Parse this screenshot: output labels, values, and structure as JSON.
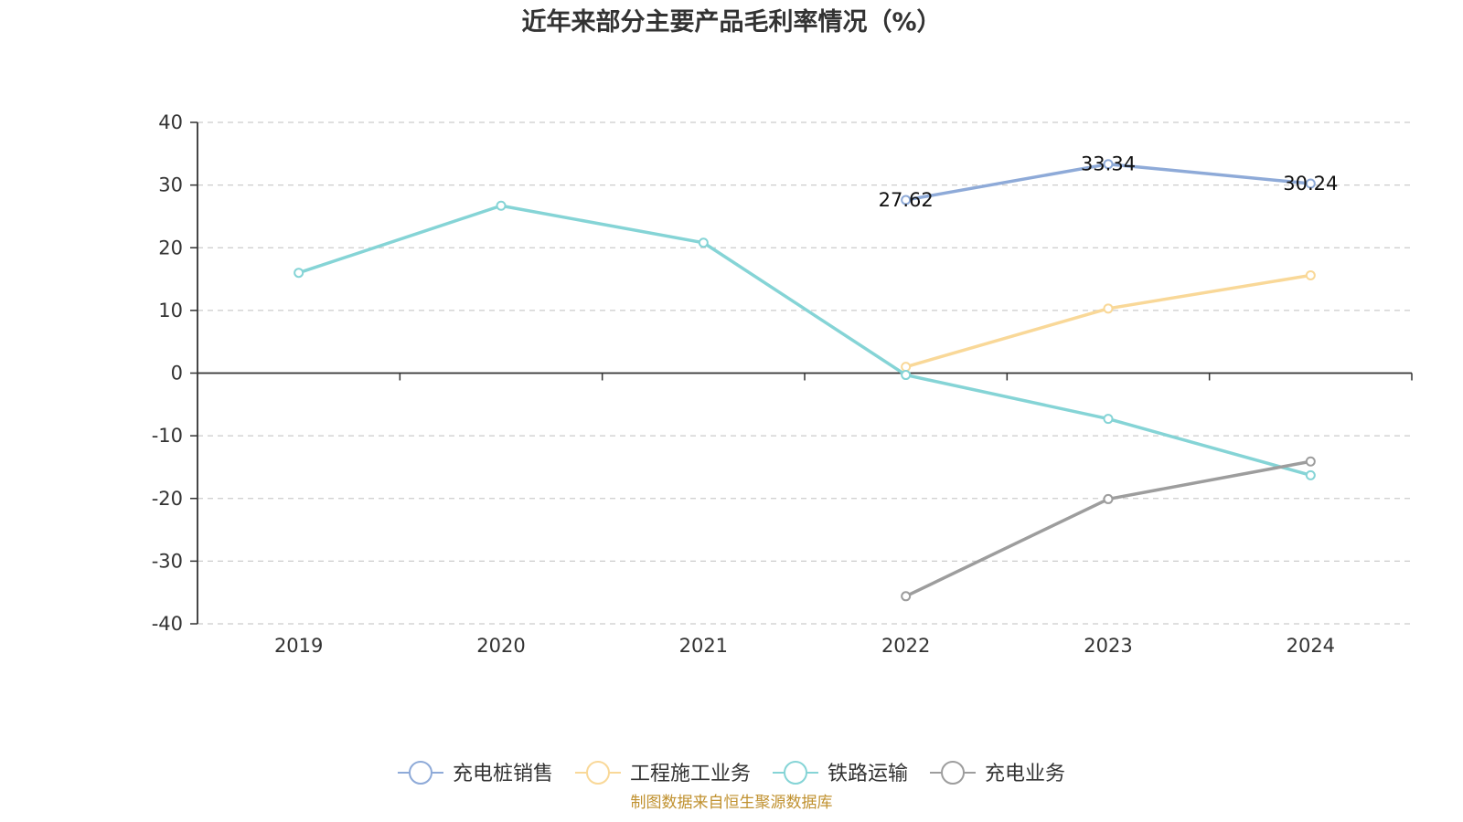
{
  "chart_data": {
    "type": "line",
    "title": "近年来部分主要产品毛利率情况（%）",
    "categories": [
      "2019",
      "2020",
      "2021",
      "2022",
      "2023",
      "2024"
    ],
    "ylim": [
      -40,
      40
    ],
    "y_ticks": [
      40,
      30,
      20,
      10,
      0,
      -10,
      -20,
      -30,
      -40
    ],
    "grid": true,
    "grid_style": "dashed",
    "legend_position": "bottom",
    "series": [
      {
        "name": "充电桩销售",
        "color": "#8eaad8",
        "values": [
          null,
          null,
          null,
          27.62,
          33.34,
          30.24
        ],
        "data_labels": [
          "",
          "",
          "",
          "27.62",
          "33.34",
          "30.24"
        ]
      },
      {
        "name": "工程施工业务",
        "color": "#f9d898",
        "values": [
          null,
          null,
          null,
          1.0,
          10.3,
          15.6
        ]
      },
      {
        "name": "铁路运输",
        "color": "#85d4d6",
        "values": [
          16.0,
          26.7,
          20.8,
          -0.3,
          -7.3,
          -16.3
        ]
      },
      {
        "name": "充电业务",
        "color": "#9d9d9d",
        "values": [
          null,
          null,
          null,
          -35.6,
          -20.1,
          -14.1
        ]
      }
    ],
    "source": "制图数据来自恒生聚源数据库"
  }
}
